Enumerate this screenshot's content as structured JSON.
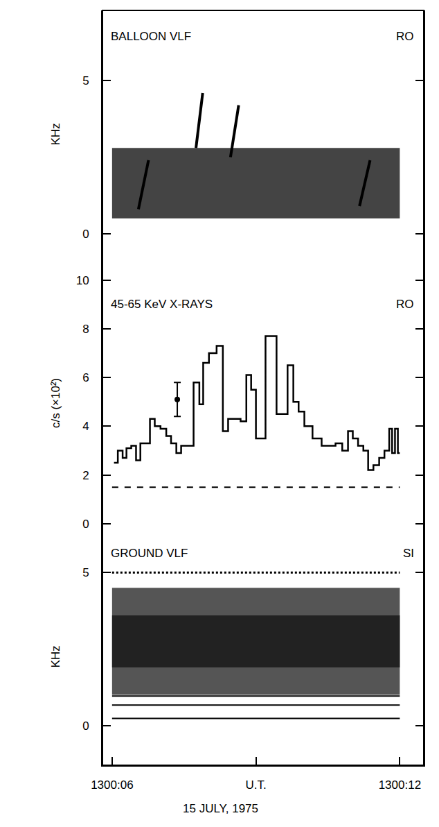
{
  "chart_data": {
    "type": "panels",
    "x_label": "15 JULY, 1975",
    "xlim": [
      5.8,
      12.5
    ],
    "xticks": [
      {
        "value": 6,
        "label": "1300:06"
      },
      {
        "value": 9,
        "label": "U.T."
      },
      {
        "value": 12,
        "label": "1300:12"
      }
    ],
    "panels": [
      {
        "type": "spectrogram",
        "title": "BALLOON VLF",
        "station": "RO",
        "y_label": "KHz",
        "ylim": [
          -0.8,
          7.3
        ],
        "yticks": [
          0,
          5
        ],
        "bands": [
          {
            "x": [
              6.0,
              12.0
            ],
            "low": 0.5,
            "high": 2.8,
            "color": "#444444"
          }
        ],
        "streaks": [
          {
            "x": [
              7.75,
              7.89
            ],
            "y": [
              2.8,
              4.6
            ]
          },
          {
            "x": [
              8.47,
              8.64
            ],
            "y": [
              2.5,
              4.2
            ]
          },
          {
            "x": [
              6.55,
              6.76
            ],
            "y": [
              0.8,
              2.4
            ]
          },
          {
            "x": [
              11.16,
              11.38
            ],
            "y": [
              0.9,
              2.4
            ]
          }
        ],
        "color": "#000000"
      },
      {
        "type": "histogram",
        "title": "45-65 KeV X-RAYS",
        "station": "RO",
        "y_label": "c/s (×10²)",
        "ylim": [
          -1,
          10.9
        ],
        "yticks": [
          0,
          2,
          4,
          6,
          8,
          10
        ],
        "bins": [
          6.04,
          6.12,
          6.22,
          6.3,
          6.4,
          6.5,
          6.59,
          6.79,
          6.89,
          7.01,
          7.13,
          7.23,
          7.34,
          7.44,
          7.7,
          7.82,
          7.9,
          8.02,
          8.18,
          8.31,
          8.42,
          8.68,
          8.8,
          8.9,
          9.0,
          9.2,
          9.43,
          9.66,
          9.78,
          9.89,
          10.01,
          10.18,
          10.37,
          10.66,
          10.8,
          10.92,
          11.02,
          11.13,
          11.24,
          11.34,
          11.45,
          11.57,
          11.68,
          11.78,
          11.84,
          11.9,
          11.96,
          12.0
        ],
        "values": [
          2.5,
          3.0,
          2.7,
          3.1,
          3.2,
          2.6,
          3.3,
          4.3,
          4.0,
          3.9,
          3.6,
          3.3,
          2.9,
          3.2,
          5.8,
          4.9,
          6.6,
          7.0,
          7.3,
          3.8,
          4.3,
          4.2,
          6.1,
          5.5,
          3.5,
          7.7,
          4.5,
          6.5,
          5.0,
          4.6,
          4.0,
          3.5,
          3.2,
          3.3,
          3.0,
          3.8,
          3.5,
          3.2,
          3.0,
          2.2,
          2.4,
          2.7,
          3.0,
          3.9,
          2.9,
          3.9,
          2.9
        ],
        "color": "#000000",
        "error_bars": [
          {
            "x": 7.36,
            "y": 5.1,
            "error": 0.7
          }
        ],
        "reference": {
          "value": 1.5,
          "line_style": "dashed"
        }
      },
      {
        "type": "spectrogram",
        "title": "GROUND VLF",
        "station": "SI",
        "y_label": "KHz",
        "ylim": [
          -1.3,
          5.8
        ],
        "yticks": [
          0,
          5
        ],
        "bands": [
          {
            "x": [
              6.0,
              12.0
            ],
            "low": 1.0,
            "high": 4.5,
            "color": "#555555"
          },
          {
            "x": [
              6.0,
              12.0
            ],
            "low": 1.9,
            "high": 3.6,
            "color": "#222222"
          }
        ],
        "lines": [
          {
            "x": [
              6.0,
              12.0
            ],
            "value": 0.96,
            "line_style": "solid"
          },
          {
            "x": [
              6.0,
              12.0
            ],
            "value": 0.67,
            "line_style": "solid"
          },
          {
            "x": [
              6.0,
              12.0
            ],
            "value": 0.23,
            "line_style": "solid"
          },
          {
            "x": [
              6.0,
              12.0
            ],
            "value": 5.0,
            "line_style": "dotted"
          }
        ],
        "color": "#000000"
      }
    ]
  }
}
